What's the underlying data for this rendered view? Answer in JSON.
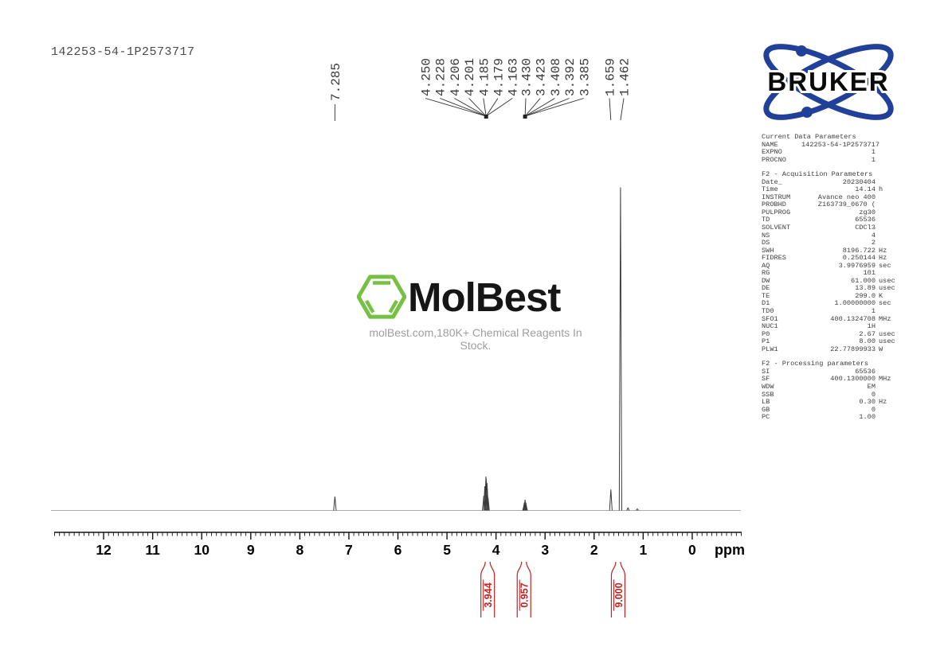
{
  "title": "142253-54-1P2573717",
  "watermark": {
    "name": "MolBest",
    "tagline": "molBest.com,180K+ Chemical Reagents In Stock.",
    "green": "#76c043"
  },
  "bruker": {
    "label": "BRUKER",
    "blue": "#21409a"
  },
  "chart_data": {
    "type": "line",
    "title": "1H NMR spectrum",
    "xlabel": "ppm",
    "x_range": [
      13.0,
      -1.0
    ],
    "x_ticks": [
      12,
      11,
      10,
      9,
      8,
      7,
      6,
      5,
      4,
      3,
      2,
      1,
      0
    ],
    "peak_label_groups": [
      [
        "7.285"
      ],
      [
        "4.250",
        "4.228",
        "4.206",
        "4.201",
        "4.185",
        "4.179",
        "4.163"
      ],
      [
        "3.430",
        "3.423",
        "3.408",
        "3.392",
        "3.385"
      ],
      [
        "1.659",
        "1.462"
      ]
    ],
    "peaks": [
      {
        "ppm": 7.285,
        "h": 0.043
      },
      {
        "ppm": 4.25,
        "h": 0.045
      },
      {
        "ppm": 4.228,
        "h": 0.075
      },
      {
        "ppm": 4.206,
        "h": 0.105
      },
      {
        "ppm": 4.201,
        "h": 0.098
      },
      {
        "ppm": 4.185,
        "h": 0.085
      },
      {
        "ppm": 4.179,
        "h": 0.068
      },
      {
        "ppm": 4.163,
        "h": 0.04
      },
      {
        "ppm": 3.43,
        "h": 0.014
      },
      {
        "ppm": 3.423,
        "h": 0.024
      },
      {
        "ppm": 3.408,
        "h": 0.033
      },
      {
        "ppm": 3.392,
        "h": 0.024
      },
      {
        "ppm": 3.385,
        "h": 0.014
      },
      {
        "ppm": 1.659,
        "h": 0.065
      },
      {
        "ppm": 1.462,
        "h": 1.0
      },
      {
        "ppm": 1.31,
        "h": 0.008
      },
      {
        "ppm": 1.12,
        "h": 0.005
      }
    ],
    "integrals": [
      {
        "value": "3.944",
        "ppm": 4.17
      },
      {
        "value": "0.957",
        "ppm": 3.43
      },
      {
        "value": "9.000",
        "ppm": 1.51
      }
    ],
    "integral_color": "#c32222"
  },
  "parameters": {
    "sections": [
      {
        "title": "Current Data Parameters",
        "rows": [
          [
            "NAME",
            "142253-54-1P2573717",
            ""
          ],
          [
            "EXPNO",
            "1",
            ""
          ],
          [
            "PROCNO",
            "1",
            ""
          ]
        ]
      },
      {
        "title": "F2 - Acquisition Parameters",
        "rows": [
          [
            "Date_",
            "20230404",
            ""
          ],
          [
            "Time",
            "14.14",
            "h"
          ],
          [
            "INSTRUM",
            "Avance neo 400",
            ""
          ],
          [
            "PROBHD",
            "Z163739_0670 (",
            ""
          ],
          [
            "PULPROG",
            "zg30",
            ""
          ],
          [
            "TD",
            "65536",
            ""
          ],
          [
            "SOLVENT",
            "CDCl3",
            ""
          ],
          [
            "NS",
            "4",
            ""
          ],
          [
            "DS",
            "2",
            ""
          ],
          [
            "SWH",
            "8196.722",
            "Hz"
          ],
          [
            "FIDRES",
            "0.250144",
            "Hz"
          ],
          [
            "AQ",
            "3.9976959",
            "sec"
          ],
          [
            "RG",
            "101",
            ""
          ],
          [
            "DW",
            "61.000",
            "usec"
          ],
          [
            "DE",
            "13.89",
            "usec"
          ],
          [
            "TE",
            "299.0",
            "K"
          ],
          [
            "D1",
            "1.00000000",
            "sec"
          ],
          [
            "TD0",
            "1",
            ""
          ],
          [
            "SFO1",
            "400.1324708",
            "MHz"
          ],
          [
            "NUC1",
            "1H",
            ""
          ],
          [
            "P0",
            "2.67",
            "usec"
          ],
          [
            "P1",
            "8.00",
            "usec"
          ],
          [
            "PLW1",
            "22.77899933",
            "W"
          ]
        ]
      },
      {
        "title": "F2 - Processing parameters",
        "rows": [
          [
            "SI",
            "65536",
            ""
          ],
          [
            "SF",
            "400.1300000",
            "MHz"
          ],
          [
            "WDW",
            "EM",
            ""
          ],
          [
            "SSB",
            "0",
            ""
          ],
          [
            "LB",
            "0.30",
            "Hz"
          ],
          [
            "GB",
            "0",
            ""
          ],
          [
            "PC",
            "1.00",
            ""
          ]
        ]
      }
    ]
  }
}
